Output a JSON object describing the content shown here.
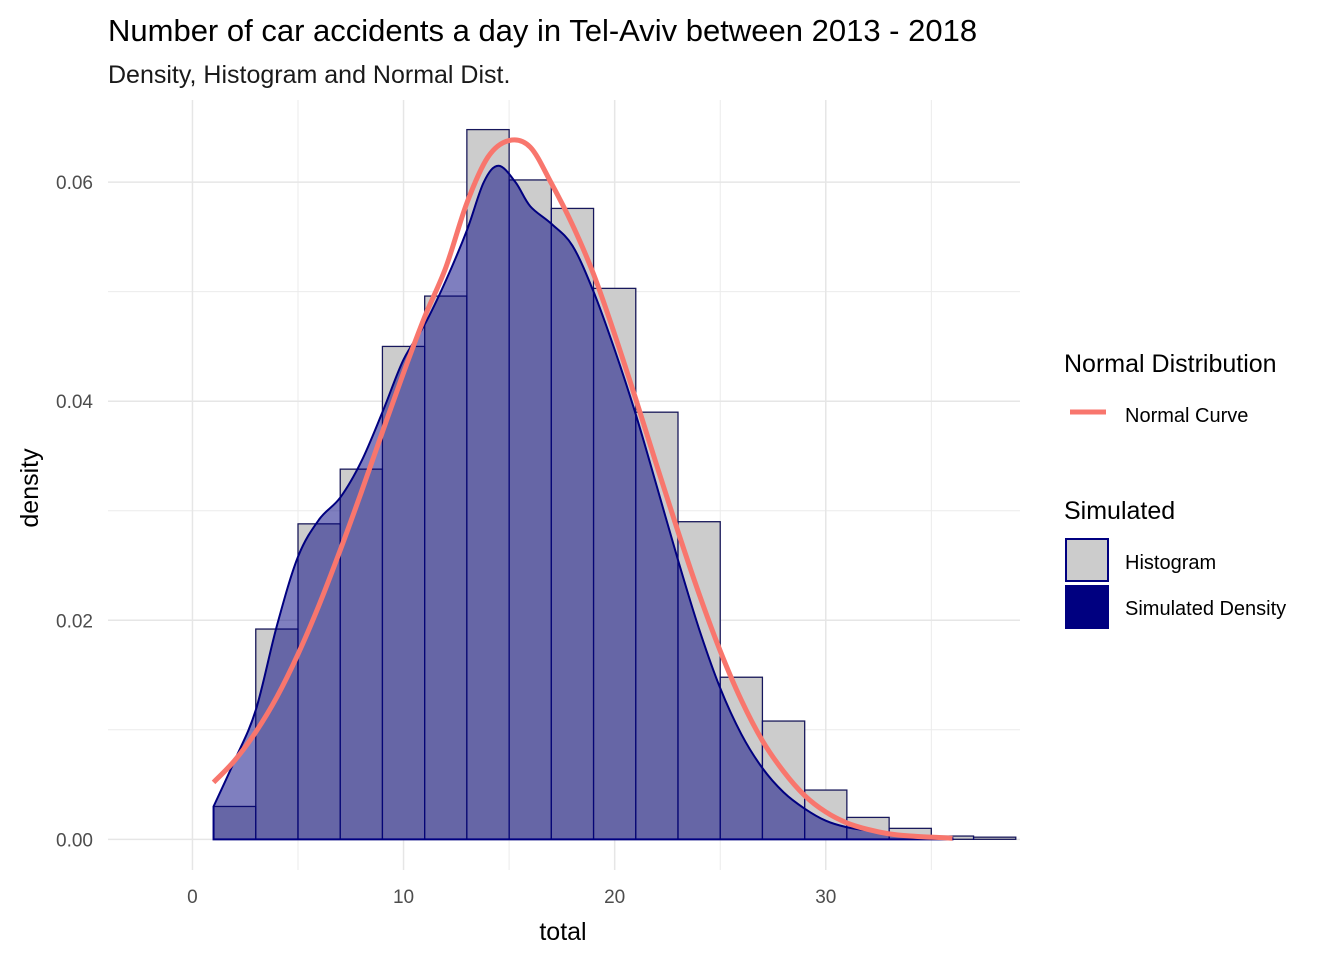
{
  "chart_data": {
    "type": "bar",
    "title": "Number of car accidents a day in Tel-Aviv between 2013 - 2018",
    "subtitle": "Density, Histogram and Normal Dist.",
    "xlabel": "total",
    "ylabel": "density",
    "xlim": [
      -4,
      39.2
    ],
    "ylim": [
      -0.0028,
      0.0675
    ],
    "x_ticks": [
      0,
      10,
      20,
      30
    ],
    "x_tick_labels": [
      "0",
      "10",
      "20",
      "30"
    ],
    "y_ticks": [
      0.0,
      0.02,
      0.04,
      0.06
    ],
    "y_tick_labels": [
      "0.00",
      "0.02",
      "0.04",
      "0.06"
    ],
    "grid": true,
    "legend_position": "right",
    "histogram": {
      "name": "Histogram",
      "fill": "#cccccc",
      "stroke": "#333333",
      "bins": [
        {
          "x0": 1,
          "x1": 3,
          "density": 0.003
        },
        {
          "x0": 3,
          "x1": 5,
          "density": 0.0192
        },
        {
          "x0": 5,
          "x1": 7,
          "density": 0.0288
        },
        {
          "x0": 7,
          "x1": 9,
          "density": 0.0338
        },
        {
          "x0": 9,
          "x1": 11,
          "density": 0.045
        },
        {
          "x0": 11,
          "x1": 13,
          "density": 0.0496
        },
        {
          "x0": 13,
          "x1": 15,
          "density": 0.0648
        },
        {
          "x0": 15,
          "x1": 17,
          "density": 0.0602
        },
        {
          "x0": 17,
          "x1": 19,
          "density": 0.0576
        },
        {
          "x0": 19,
          "x1": 21,
          "density": 0.0503
        },
        {
          "x0": 21,
          "x1": 23,
          "density": 0.039
        },
        {
          "x0": 23,
          "x1": 25,
          "density": 0.029
        },
        {
          "x0": 25,
          "x1": 27,
          "density": 0.0148
        },
        {
          "x0": 27,
          "x1": 29,
          "density": 0.0108
        },
        {
          "x0": 29,
          "x1": 31,
          "density": 0.0045
        },
        {
          "x0": 31,
          "x1": 33,
          "density": 0.002
        },
        {
          "x0": 33,
          "x1": 35,
          "density": 0.001
        },
        {
          "x0": 35,
          "x1": 37,
          "density": 0.0003
        },
        {
          "x0": 37,
          "x1": 39,
          "density": 0.0002
        }
      ]
    },
    "density_series": {
      "name": "Simulated Density",
      "fill": "#000080",
      "fill_opacity": 0.5,
      "stroke": "#000080",
      "x": [
        1,
        2,
        3,
        4,
        5,
        6,
        7,
        8,
        9,
        10,
        11,
        12,
        13,
        13.8,
        14.5,
        15.3,
        16,
        17,
        18,
        19,
        20,
        21,
        22,
        23,
        24,
        25,
        26,
        27,
        28,
        29,
        30,
        31,
        32,
        33,
        34,
        35,
        36
      ],
      "y": [
        0.003,
        0.0072,
        0.0118,
        0.0195,
        0.0258,
        0.0292,
        0.0312,
        0.0345,
        0.039,
        0.0438,
        0.047,
        0.051,
        0.0556,
        0.06,
        0.0615,
        0.06,
        0.0578,
        0.0562,
        0.0542,
        0.05,
        0.0447,
        0.0388,
        0.0322,
        0.0255,
        0.0192,
        0.0138,
        0.0096,
        0.0065,
        0.0043,
        0.0028,
        0.0017,
        0.0011,
        0.0008,
        0.0005,
        0.0003,
        0.0002,
        0.0001
      ]
    },
    "normal_curve": {
      "name": "Normal Curve",
      "color": "#f8766d",
      "x": [
        1,
        2,
        3,
        4,
        5,
        6,
        7,
        8,
        9,
        10,
        11,
        12,
        13,
        14,
        15,
        16,
        17,
        18,
        19,
        20,
        21,
        22,
        23,
        24,
        25,
        26,
        27,
        28,
        29,
        30,
        31,
        32,
        33,
        34,
        35,
        36
      ],
      "y": [
        0.0052,
        0.0072,
        0.0098,
        0.013,
        0.0169,
        0.0214,
        0.0264,
        0.0317,
        0.0372,
        0.0426,
        0.0477,
        0.0522,
        0.0581,
        0.0623,
        0.0638,
        0.0632,
        0.0599,
        0.0561,
        0.0516,
        0.0461,
        0.0402,
        0.0341,
        0.0281,
        0.0224,
        0.0172,
        0.0127,
        0.009,
        0.0062,
        0.004,
        0.0025,
        0.0015,
        0.0009,
        0.0005,
        0.0003,
        0.0002,
        0.0001
      ]
    },
    "legend": {
      "groups": [
        {
          "title": "Normal Distribution",
          "entries": [
            {
              "label": "Normal Curve",
              "kind": "line",
              "color": "#f8766d"
            }
          ]
        },
        {
          "title": "Simulated",
          "entries": [
            {
              "label": "Histogram",
              "kind": "box",
              "fill": "#cccccc",
              "stroke": "#000080"
            },
            {
              "label": "Simulated Density",
              "kind": "box",
              "fill": "#000080",
              "stroke": "#000080"
            }
          ]
        }
      ]
    }
  }
}
